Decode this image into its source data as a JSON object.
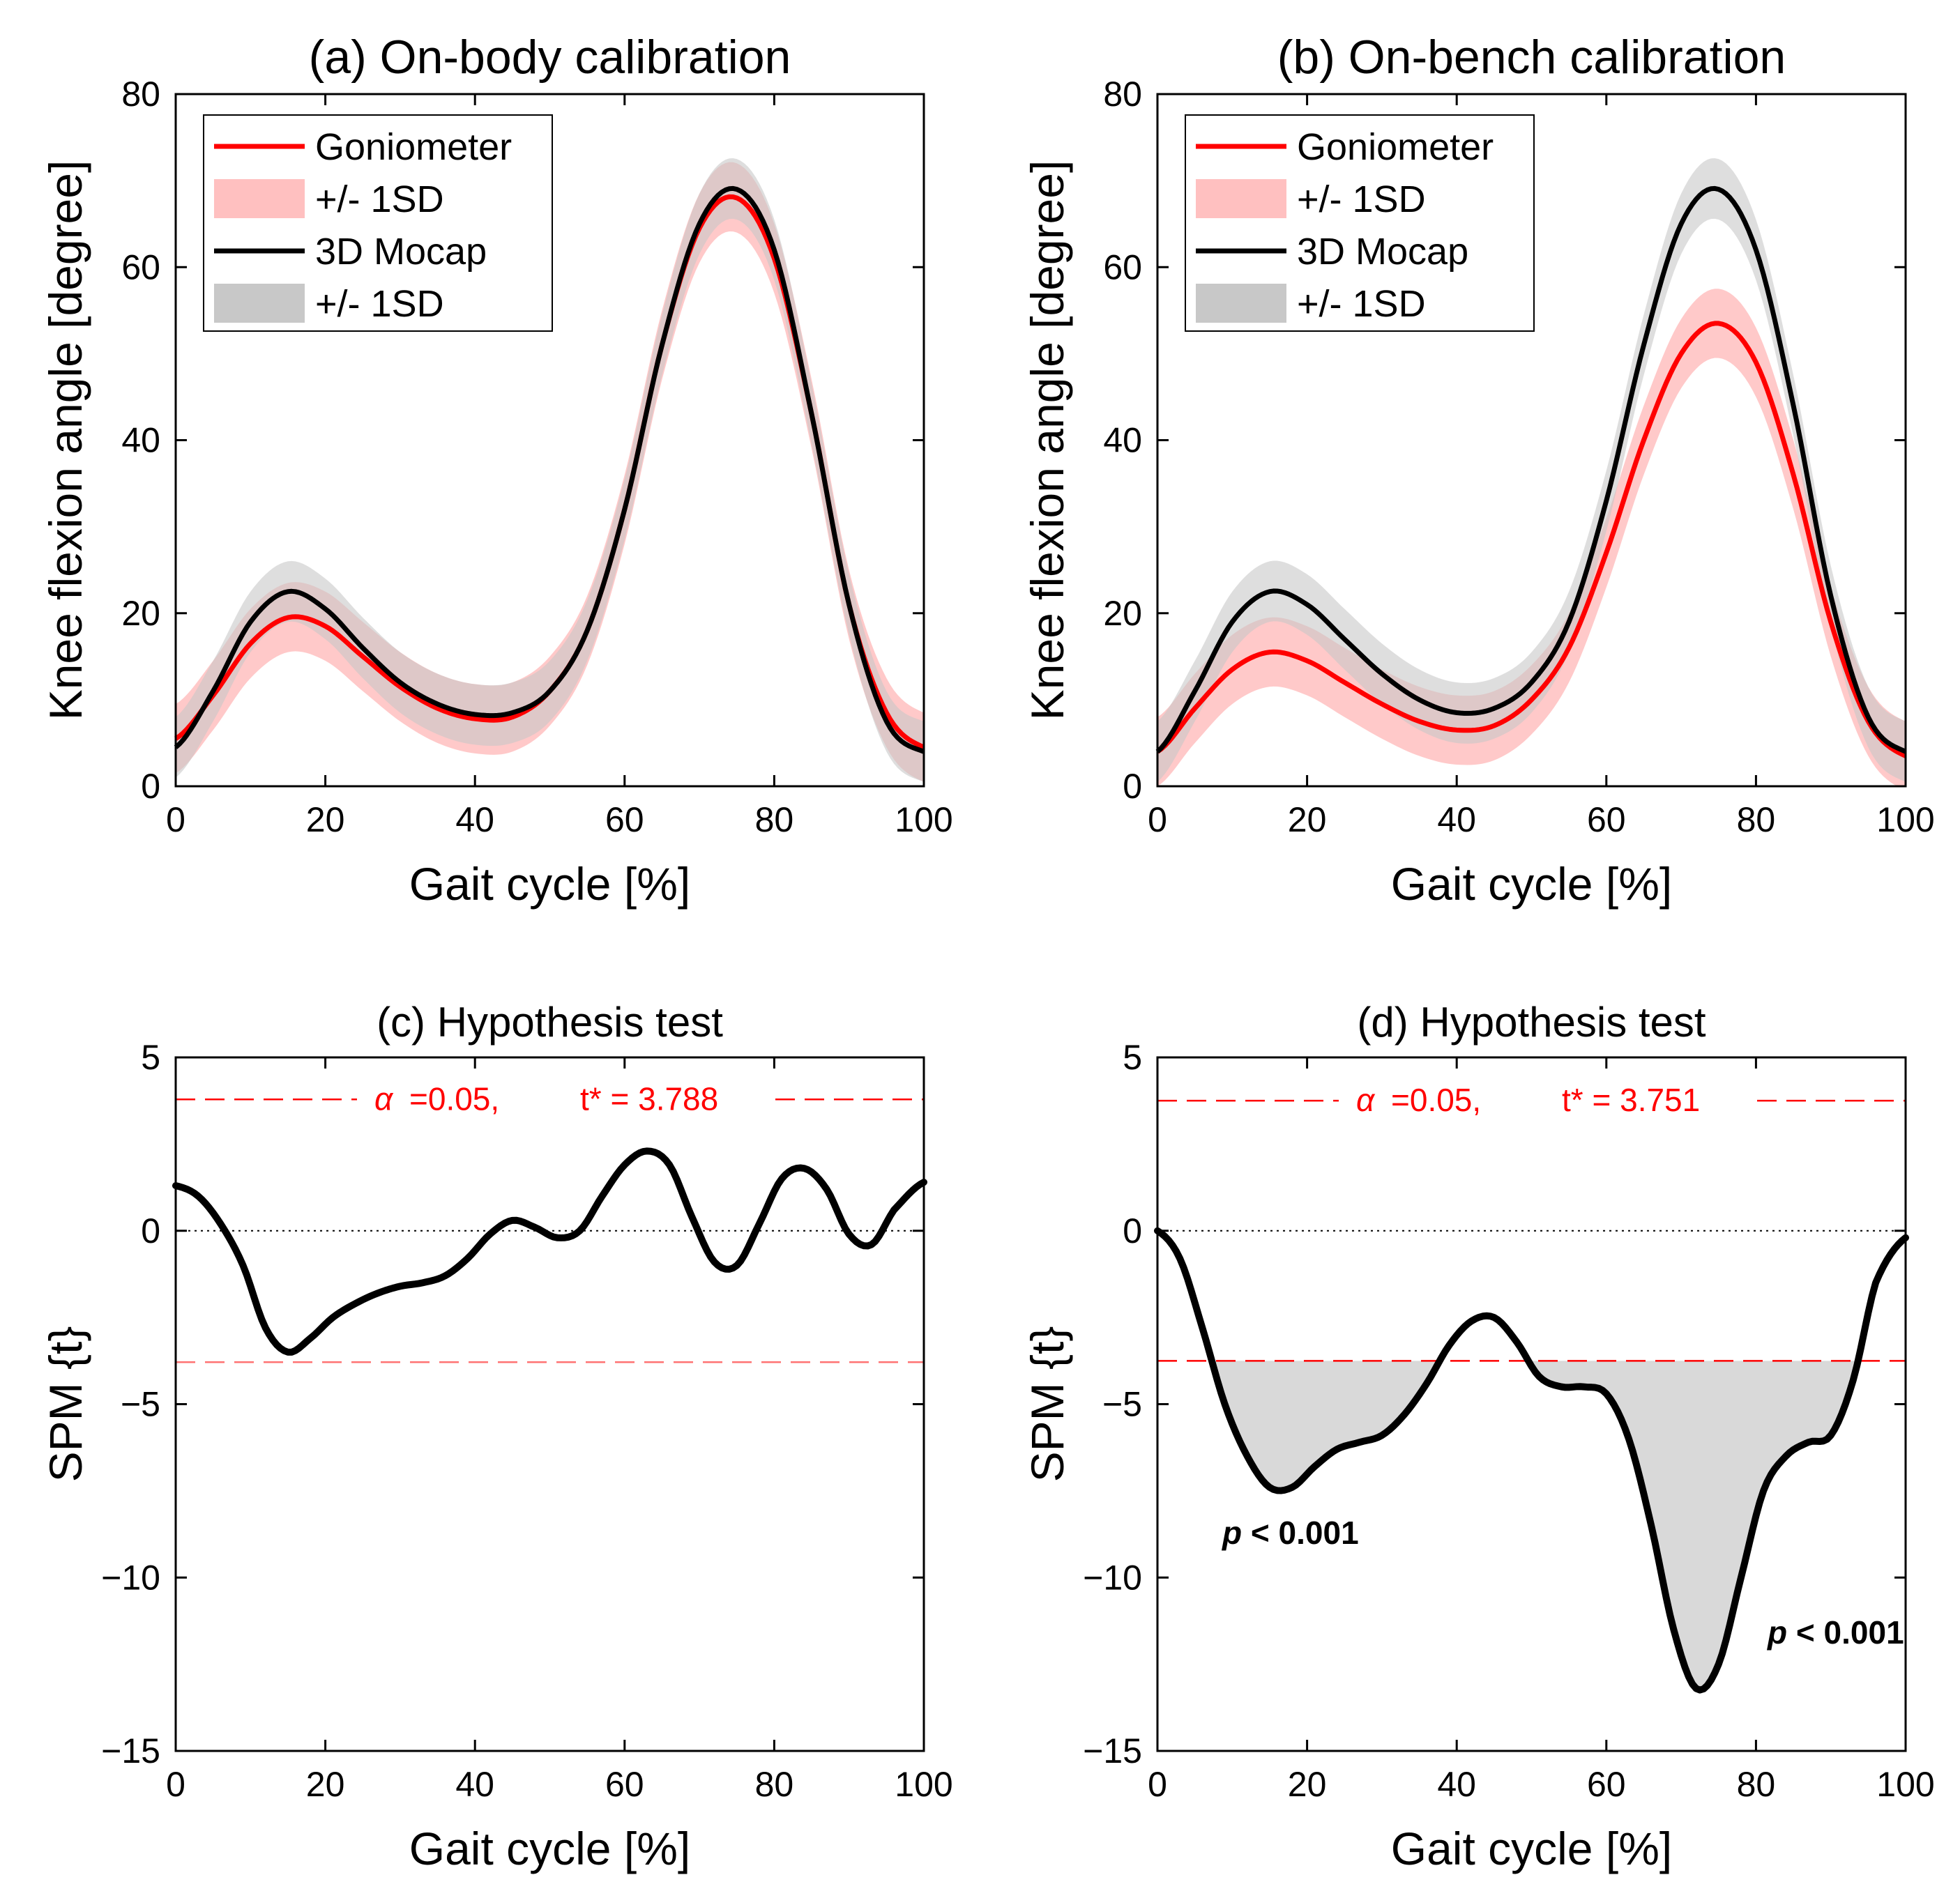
{
  "figure": {
    "x_axis_label": "Gait cycle [%]",
    "x_ticks": [
      "0",
      "20",
      "40",
      "60",
      "80",
      "100"
    ]
  },
  "colors": {
    "goniometer": "#ff0000",
    "goniometer_band": "#ffc0c0",
    "mocap": "#000000",
    "mocap_band": "#c8c8c8",
    "threshold": "#ff0000",
    "significant_fill": "#d9d9d9"
  },
  "chart_data": [
    {
      "id": "a",
      "type": "line",
      "title": "(a) On-body calibration",
      "xlabel": "Gait cycle [%]",
      "ylabel": "Knee flexion angle [degree]",
      "xlim": [
        0,
        100
      ],
      "ylim": [
        0,
        80
      ],
      "y_ticks": [
        "0",
        "20",
        "40",
        "60",
        "80"
      ],
      "legend": {
        "position": "top-left",
        "entries": [
          "Goniometer",
          "+/- 1SD",
          "3D Mocap",
          "+/- 1SD"
        ]
      },
      "x": [
        0,
        5,
        10,
        15,
        20,
        25,
        30,
        35,
        40,
        45,
        50,
        55,
        60,
        65,
        70,
        75,
        80,
        85,
        90,
        95,
        100
      ],
      "series": [
        {
          "name": "Goniometer",
          "sd": 4,
          "values": [
            5.5,
            10.5,
            16.5,
            19.5,
            18.5,
            15,
            11.5,
            9,
            7.8,
            8,
            11,
            18,
            32,
            51,
            64.5,
            68,
            61,
            43,
            21,
            8.5,
            4.5
          ]
        },
        {
          "name": "3D Mocap",
          "sd": 3.5,
          "values": [
            4.5,
            11,
            19,
            22.5,
            20.5,
            16,
            12,
            9.5,
            8.3,
            8.5,
            11,
            18,
            32,
            51,
            65,
            69,
            62,
            43,
            21,
            7.5,
            4
          ]
        }
      ]
    },
    {
      "id": "b",
      "type": "line",
      "title": "(b) On-bench calibration",
      "xlabel": "Gait cycle [%]",
      "ylabel": "Knee flexion angle [degree]",
      "xlim": [
        0,
        100
      ],
      "ylim": [
        0,
        80
      ],
      "y_ticks": [
        "0",
        "20",
        "40",
        "60",
        "80"
      ],
      "legend": {
        "position": "top-left",
        "entries": [
          "Goniometer",
          "+/- 1SD",
          "3D Mocap",
          "+/- 1SD"
        ]
      },
      "x": [
        0,
        5,
        10,
        15,
        20,
        25,
        30,
        35,
        40,
        45,
        50,
        55,
        60,
        65,
        70,
        75,
        80,
        85,
        90,
        95,
        100
      ],
      "series": [
        {
          "name": "Goniometer",
          "sd": 4,
          "values": [
            4,
            9,
            13.5,
            15.5,
            14.5,
            12,
            9.5,
            7.5,
            6.5,
            7,
            10,
            16,
            27,
            40,
            50,
            53.5,
            49,
            36,
            19,
            7.5,
            3.5
          ]
        },
        {
          "name": "3D Mocap",
          "sd": 3.5,
          "values": [
            4,
            11,
            19,
            22.5,
            21,
            17,
            13,
            10,
            8.5,
            9,
            12,
            19,
            33,
            51,
            65,
            69,
            62,
            44,
            22,
            8,
            4
          ]
        }
      ]
    },
    {
      "id": "c",
      "type": "line",
      "title": "(c) Hypothesis test",
      "xlabel": "Gait cycle [%]",
      "ylabel": "SPM {t}",
      "xlim": [
        0,
        100
      ],
      "ylim": [
        -15,
        5
      ],
      "y_ticks": [
        "5",
        "0",
        "−5",
        "−10",
        "−15"
      ],
      "threshold": 3.788,
      "annotation": {
        "alpha": "α",
        "alpha_text": "=0.05,",
        "tstar_text": "t* = 3.788"
      },
      "x": [
        0,
        3,
        6,
        9,
        12,
        15,
        18,
        21,
        24,
        27,
        30,
        33,
        36,
        39,
        42,
        45,
        48,
        51,
        54,
        57,
        60,
        63,
        66,
        69,
        72,
        75,
        78,
        81,
        84,
        87,
        90,
        93,
        96,
        100
      ],
      "values": [
        1.3,
        1,
        0.2,
        -1,
        -2.8,
        -3.5,
        -3.1,
        -2.5,
        -2.1,
        -1.8,
        -1.6,
        -1.5,
        -1.3,
        -0.8,
        -0.1,
        0.3,
        0.1,
        -0.2,
        0,
        1,
        1.9,
        2.3,
        1.9,
        0.4,
        -0.9,
        -1,
        0.2,
        1.5,
        1.8,
        1.2,
        -0.1,
        -0.4,
        0.6,
        1.4
      ],
      "significant_regions": []
    },
    {
      "id": "d",
      "type": "line",
      "title": "(d) Hypothesis test",
      "xlabel": "Gait cycle [%]",
      "ylabel": "SPM {t}",
      "xlim": [
        0,
        100
      ],
      "ylim": [
        -15,
        5
      ],
      "y_ticks": [
        "5",
        "0",
        "−5",
        "−10",
        "−15"
      ],
      "threshold": 3.751,
      "annotation": {
        "alpha": "α",
        "alpha_text": "=0.05,",
        "tstar_text": "t* = 3.751"
      },
      "x": [
        0,
        3,
        6,
        9,
        12,
        15,
        18,
        21,
        24,
        27,
        30,
        33,
        36,
        39,
        42,
        45,
        48,
        51,
        54,
        57,
        60,
        63,
        66,
        69,
        72,
        75,
        78,
        81,
        84,
        87,
        90,
        93,
        96,
        100
      ],
      "values": [
        0,
        -0.8,
        -2.8,
        -5,
        -6.5,
        -7.4,
        -7.4,
        -6.8,
        -6.3,
        -6.1,
        -5.9,
        -5.3,
        -4.4,
        -3.3,
        -2.6,
        -2.5,
        -3.2,
        -4.2,
        -4.5,
        -4.5,
        -4.7,
        -6,
        -8.5,
        -11.5,
        -13.2,
        -12.5,
        -10,
        -7.5,
        -6.5,
        -6.1,
        -5.9,
        -4.3,
        -1.5,
        -0.2
      ],
      "significant_regions": [
        {
          "from": 7.3,
          "to": 38.8,
          "p_label_p": "p",
          "p_label_rest": " < 0.001"
        },
        {
          "from": 48.8,
          "to": 94.2,
          "p_label_p": "p",
          "p_label_rest": " < 0.001"
        }
      ]
    }
  ]
}
